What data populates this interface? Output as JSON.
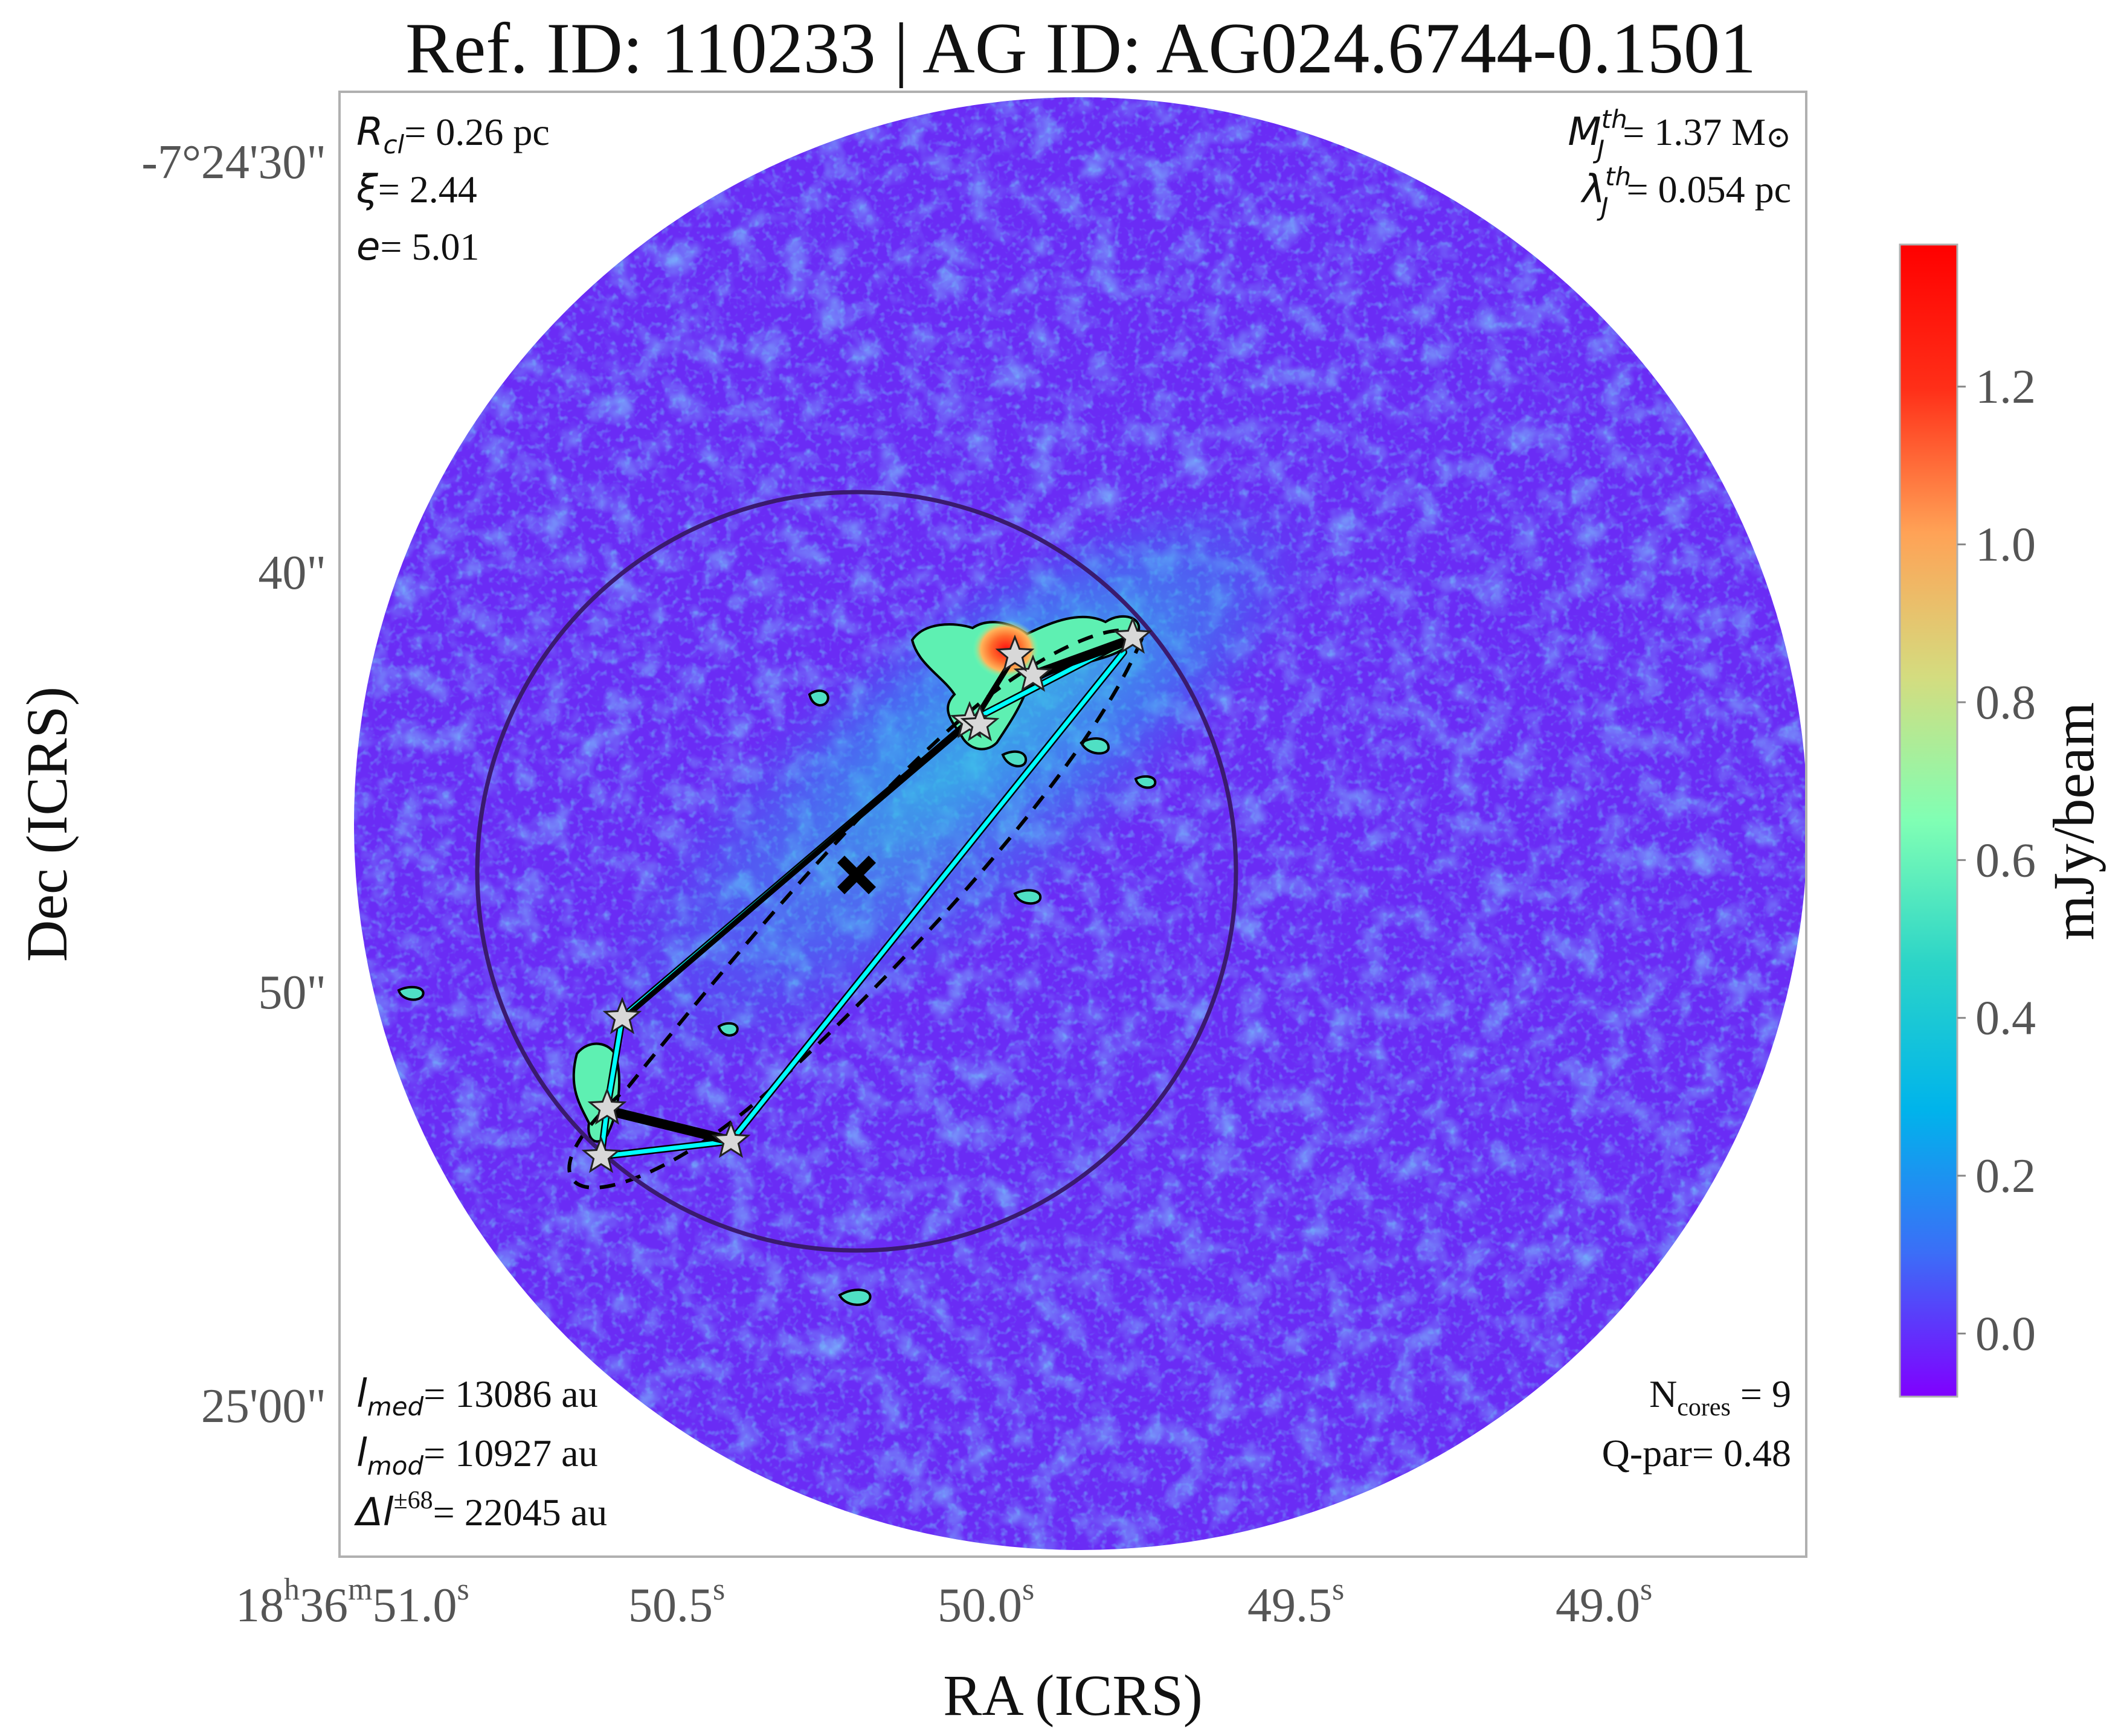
{
  "title": "Ref. ID: 110233 | AG ID: AG024.6744-0.1501",
  "axes": {
    "xlabel": "RA (ICRS)",
    "ylabel": "Dec (ICRS)",
    "x_ticks": [
      {
        "h": "18",
        "m": "36",
        "s": "51.0",
        "full": true
      },
      {
        "s": "50.5",
        "full": false
      },
      {
        "s": "50.0",
        "full": false
      },
      {
        "s": "49.5",
        "full": false
      },
      {
        "s": "49.0",
        "full": false
      }
    ],
    "y_ticks": [
      "-7°24'30\"",
      "40\"",
      "50\"",
      "25'00\""
    ]
  },
  "colorbar": {
    "label": "mJy/beam",
    "ticks": [
      "0.0",
      "0.2",
      "0.4",
      "0.6",
      "0.8",
      "1.0",
      "1.2"
    ],
    "tick_values": [
      0.0,
      0.2,
      0.4,
      0.6,
      0.8,
      1.0,
      1.2
    ],
    "vmin": -0.08,
    "vmax": 1.38,
    "colormap": "rainbow",
    "colors": [
      "#8000ff",
      "#3b6ef7",
      "#00b4eb",
      "#2bd4c8",
      "#80ffb4",
      "#d4dc7f",
      "#ffa256",
      "#ff2f18",
      "#ff0000"
    ]
  },
  "annotations": {
    "r_cl": {
      "sym": "R",
      "sub": "cl",
      "val": "= 0.26 pc"
    },
    "xi": {
      "sym": "ξ",
      "val": "= 2.44"
    },
    "e": {
      "sym": "e",
      "val": "= 5.01"
    },
    "mj": {
      "sym": "M",
      "sub": "J",
      "sup": "th",
      "val": "= 1.37 M",
      "sun": "⊙"
    },
    "lj": {
      "sym": "λ",
      "sub": "J",
      "sup": "th",
      "val": "= 0.054 pc"
    },
    "lmed": {
      "sym": "l",
      "sub": "med",
      "val": "= 13086 au"
    },
    "lmod": {
      "sym": "l",
      "sub": "mod",
      "val": "= 10927 au"
    },
    "dl": {
      "sym": "Δl",
      "sup": "±68",
      "val": "= 22045 au"
    },
    "ncores": {
      "sym": "N",
      "sub": "cores",
      "val": " = 9"
    },
    "qpar": {
      "val": "Q-par= 0.48"
    }
  },
  "cores_count": 9,
  "map_style": {
    "background_color": "#6a2cf5",
    "filament_color": "#25c7e3",
    "mst_color": "#000000",
    "msf_color": "#00ffff",
    "cluster_circle_color": "#3a1a6e",
    "star_color": "#d8d8d8"
  }
}
